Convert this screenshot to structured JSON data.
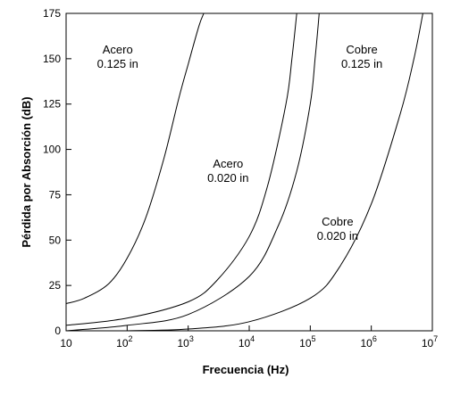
{
  "chart_data": {
    "type": "line",
    "xlabel": "Frecuencia (Hz)",
    "ylabel": "Pérdida por Absorción (dB)",
    "x_scale": "log",
    "xlim": [
      10,
      10000000
    ],
    "ylim": [
      0,
      175
    ],
    "x_ticks": [
      {
        "value": 10,
        "base": "10",
        "exp": ""
      },
      {
        "value": 100,
        "base": "10",
        "exp": "2"
      },
      {
        "value": 1000,
        "base": "10",
        "exp": "3"
      },
      {
        "value": 10000,
        "base": "10",
        "exp": "4"
      },
      {
        "value": 100000,
        "base": "10",
        "exp": "5"
      },
      {
        "value": 1000000,
        "base": "10",
        "exp": "6"
      },
      {
        "value": 10000000,
        "base": "10",
        "exp": "7"
      }
    ],
    "y_ticks": [
      "0",
      "25",
      "50",
      "75",
      "100",
      "125",
      "150",
      "175"
    ],
    "grid": false,
    "series": [
      {
        "name": "Acero 0.125 in",
        "label_lines": [
          "Acero",
          "0.125 in"
        ],
        "points": [
          [
            10,
            15
          ],
          [
            20,
            18
          ],
          [
            50,
            26
          ],
          [
            100,
            40
          ],
          [
            200,
            62
          ],
          [
            400,
            95
          ],
          [
            700,
            128
          ],
          [
            1000,
            147
          ],
          [
            1500,
            168
          ],
          [
            1800,
            175
          ]
        ]
      },
      {
        "name": "Acero 0.020 in",
        "label_lines": [
          "Acero",
          "0.020 in"
        ],
        "points": [
          [
            10,
            3
          ],
          [
            100,
            7
          ],
          [
            1000,
            16
          ],
          [
            3000,
            28
          ],
          [
            10000,
            52
          ],
          [
            20000,
            80
          ],
          [
            40000,
            125
          ],
          [
            50000,
            150
          ],
          [
            60000,
            175
          ]
        ]
      },
      {
        "name": "Cobre 0.125 in",
        "label_lines": [
          "Cobre",
          "0.125 in"
        ],
        "points": [
          [
            10,
            0
          ],
          [
            100,
            3
          ],
          [
            1000,
            9
          ],
          [
            10000,
            30
          ],
          [
            30000,
            58
          ],
          [
            60000,
            88
          ],
          [
            100000,
            125
          ],
          [
            120000,
            150
          ],
          [
            140000,
            175
          ]
        ]
      },
      {
        "name": "Cobre 0.020 in",
        "label_lines": [
          "Cobre",
          "0.020 in"
        ],
        "points": [
          [
            100,
            0
          ],
          [
            1000,
            1
          ],
          [
            10000,
            5
          ],
          [
            100000,
            18
          ],
          [
            300000,
            35
          ],
          [
            1000000,
            70
          ],
          [
            3000000,
            120
          ],
          [
            5000000,
            150
          ],
          [
            7000000,
            175
          ]
        ]
      }
    ],
    "annotations": [
      {
        "lines": [
          "Acero",
          "0.125 in"
        ],
        "x": 70,
        "y": 150
      },
      {
        "lines": [
          "Acero",
          "0.020 in"
        ],
        "x": 4500,
        "y": 87
      },
      {
        "lines": [
          "Cobre",
          "0.125 in"
        ],
        "x": 700000,
        "y": 150
      },
      {
        "lines": [
          "Cobre",
          "0.020 in"
        ],
        "x": 280000,
        "y": 55
      }
    ]
  }
}
